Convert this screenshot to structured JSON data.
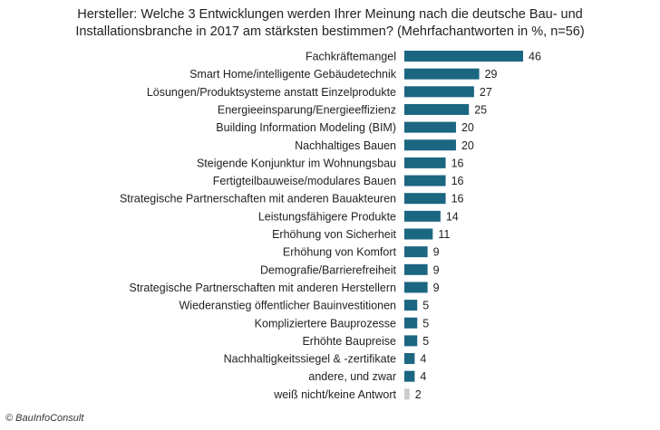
{
  "chart_data": {
    "type": "bar",
    "orientation": "horizontal",
    "title_lines": [
      "Hersteller: Welche 3 Entwicklungen  werden Ihrer Meinung nach die deutsche Bau- und",
      "Installationsbranche  in 2017 am stärksten bestimmen?  (Mehrfachantworten in %, n=56)"
    ],
    "categories": [
      "Fachkräftemangel",
      "Smart Home/intelligente Gebäudetechnik",
      "Lösungen/Produktsysteme anstatt Einzelprodukte",
      "Energieeinsparung/Energieeffizienz",
      "Building Information Modeling (BIM)",
      "Nachhaltiges Bauen",
      "Steigende Konjunktur im Wohnungsbau",
      "Fertigteilbauweise/modulares Bauen",
      "Strategische Partnerschaften mit anderen Bauakteuren",
      "Leistungsfähigere Produkte",
      "Erhöhung von Sicherheit",
      "Erhöhung von Komfort",
      "Demografie/Barrierefreiheit",
      "Strategische Partnerschaften mit anderen Herstellern",
      "Wiederanstieg öffentlicher Bauinvestitionen",
      "Kompliziertere Bauprozesse",
      "Erhöhte Baupreise",
      "Nachhaltigkeitssiegel & -zertifikate",
      "andere, und zwar",
      "weiß nicht/keine Antwort"
    ],
    "values": [
      46,
      29,
      27,
      25,
      20,
      20,
      16,
      16,
      16,
      14,
      11,
      9,
      9,
      9,
      5,
      5,
      5,
      4,
      4,
      2
    ],
    "data_labels": [
      "46",
      "29",
      "27",
      "25",
      "20",
      "20",
      "16",
      "16",
      "16",
      "14",
      "11",
      "9",
      "9",
      "9",
      "5",
      "5",
      "5",
      "4",
      "4",
      "2"
    ],
    "bar_color": "#1b6681",
    "highlight_color_last": "#cccccc",
    "grid": false,
    "legend": "none"
  },
  "copyright": "© BauInfoConsult"
}
